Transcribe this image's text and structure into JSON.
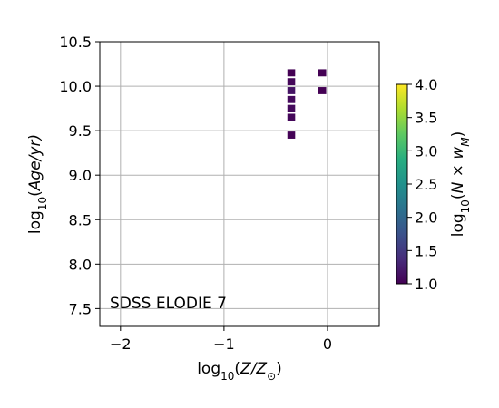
{
  "chart_data": {
    "type": "heatmap",
    "title": "",
    "xlabel": {
      "prefix": "log",
      "sub": "10",
      "body": "(Z/Z",
      "subsym": "⊙",
      "suffix": ")"
    },
    "ylabel": {
      "prefix": "log",
      "sub": "10",
      "body": "(Age/yr)"
    },
    "xlim": [
      -2.2,
      0.5
    ],
    "ylim": [
      7.3,
      10.5
    ],
    "xticks": [
      -2,
      -1,
      0
    ],
    "xtick_labels": [
      "−2",
      "−1",
      "0"
    ],
    "yticks": [
      7.5,
      8.0,
      8.5,
      9.0,
      9.5,
      10.0,
      10.5
    ],
    "ytick_labels": [
      "7.5",
      "8.0",
      "8.5",
      "9.0",
      "9.5",
      "10.0",
      "10.5"
    ],
    "grid": true,
    "annotation": "SDSS ELODIE 7",
    "colorbar": {
      "label": {
        "prefix": "log",
        "sub": "10",
        "body": "(N × w",
        "subsym": "M",
        "suffix": ")"
      },
      "range": [
        1.0,
        4.0
      ],
      "ticks": [
        1.0,
        1.5,
        2.0,
        2.5,
        3.0,
        3.5,
        4.0
      ],
      "tick_labels": [
        "1.0",
        "1.5",
        "2.0",
        "2.5",
        "3.0",
        "3.5",
        "4.0"
      ],
      "colormap": "viridis"
    },
    "cells": [
      {
        "x": -0.35,
        "y": 10.15,
        "value": 1.0
      },
      {
        "x": -0.35,
        "y": 10.05,
        "value": 1.05
      },
      {
        "x": -0.35,
        "y": 9.95,
        "value": 1.15
      },
      {
        "x": -0.35,
        "y": 9.85,
        "value": 1.08
      },
      {
        "x": -0.35,
        "y": 9.75,
        "value": 1.08
      },
      {
        "x": -0.35,
        "y": 9.65,
        "value": 1.05
      },
      {
        "x": -0.35,
        "y": 9.45,
        "value": 1.02
      },
      {
        "x": -0.05,
        "y": 10.15,
        "value": 1.0
      },
      {
        "x": -0.05,
        "y": 9.95,
        "value": 1.0
      }
    ],
    "cell_size": {
      "dx": 0.075,
      "dy": 0.08
    }
  }
}
